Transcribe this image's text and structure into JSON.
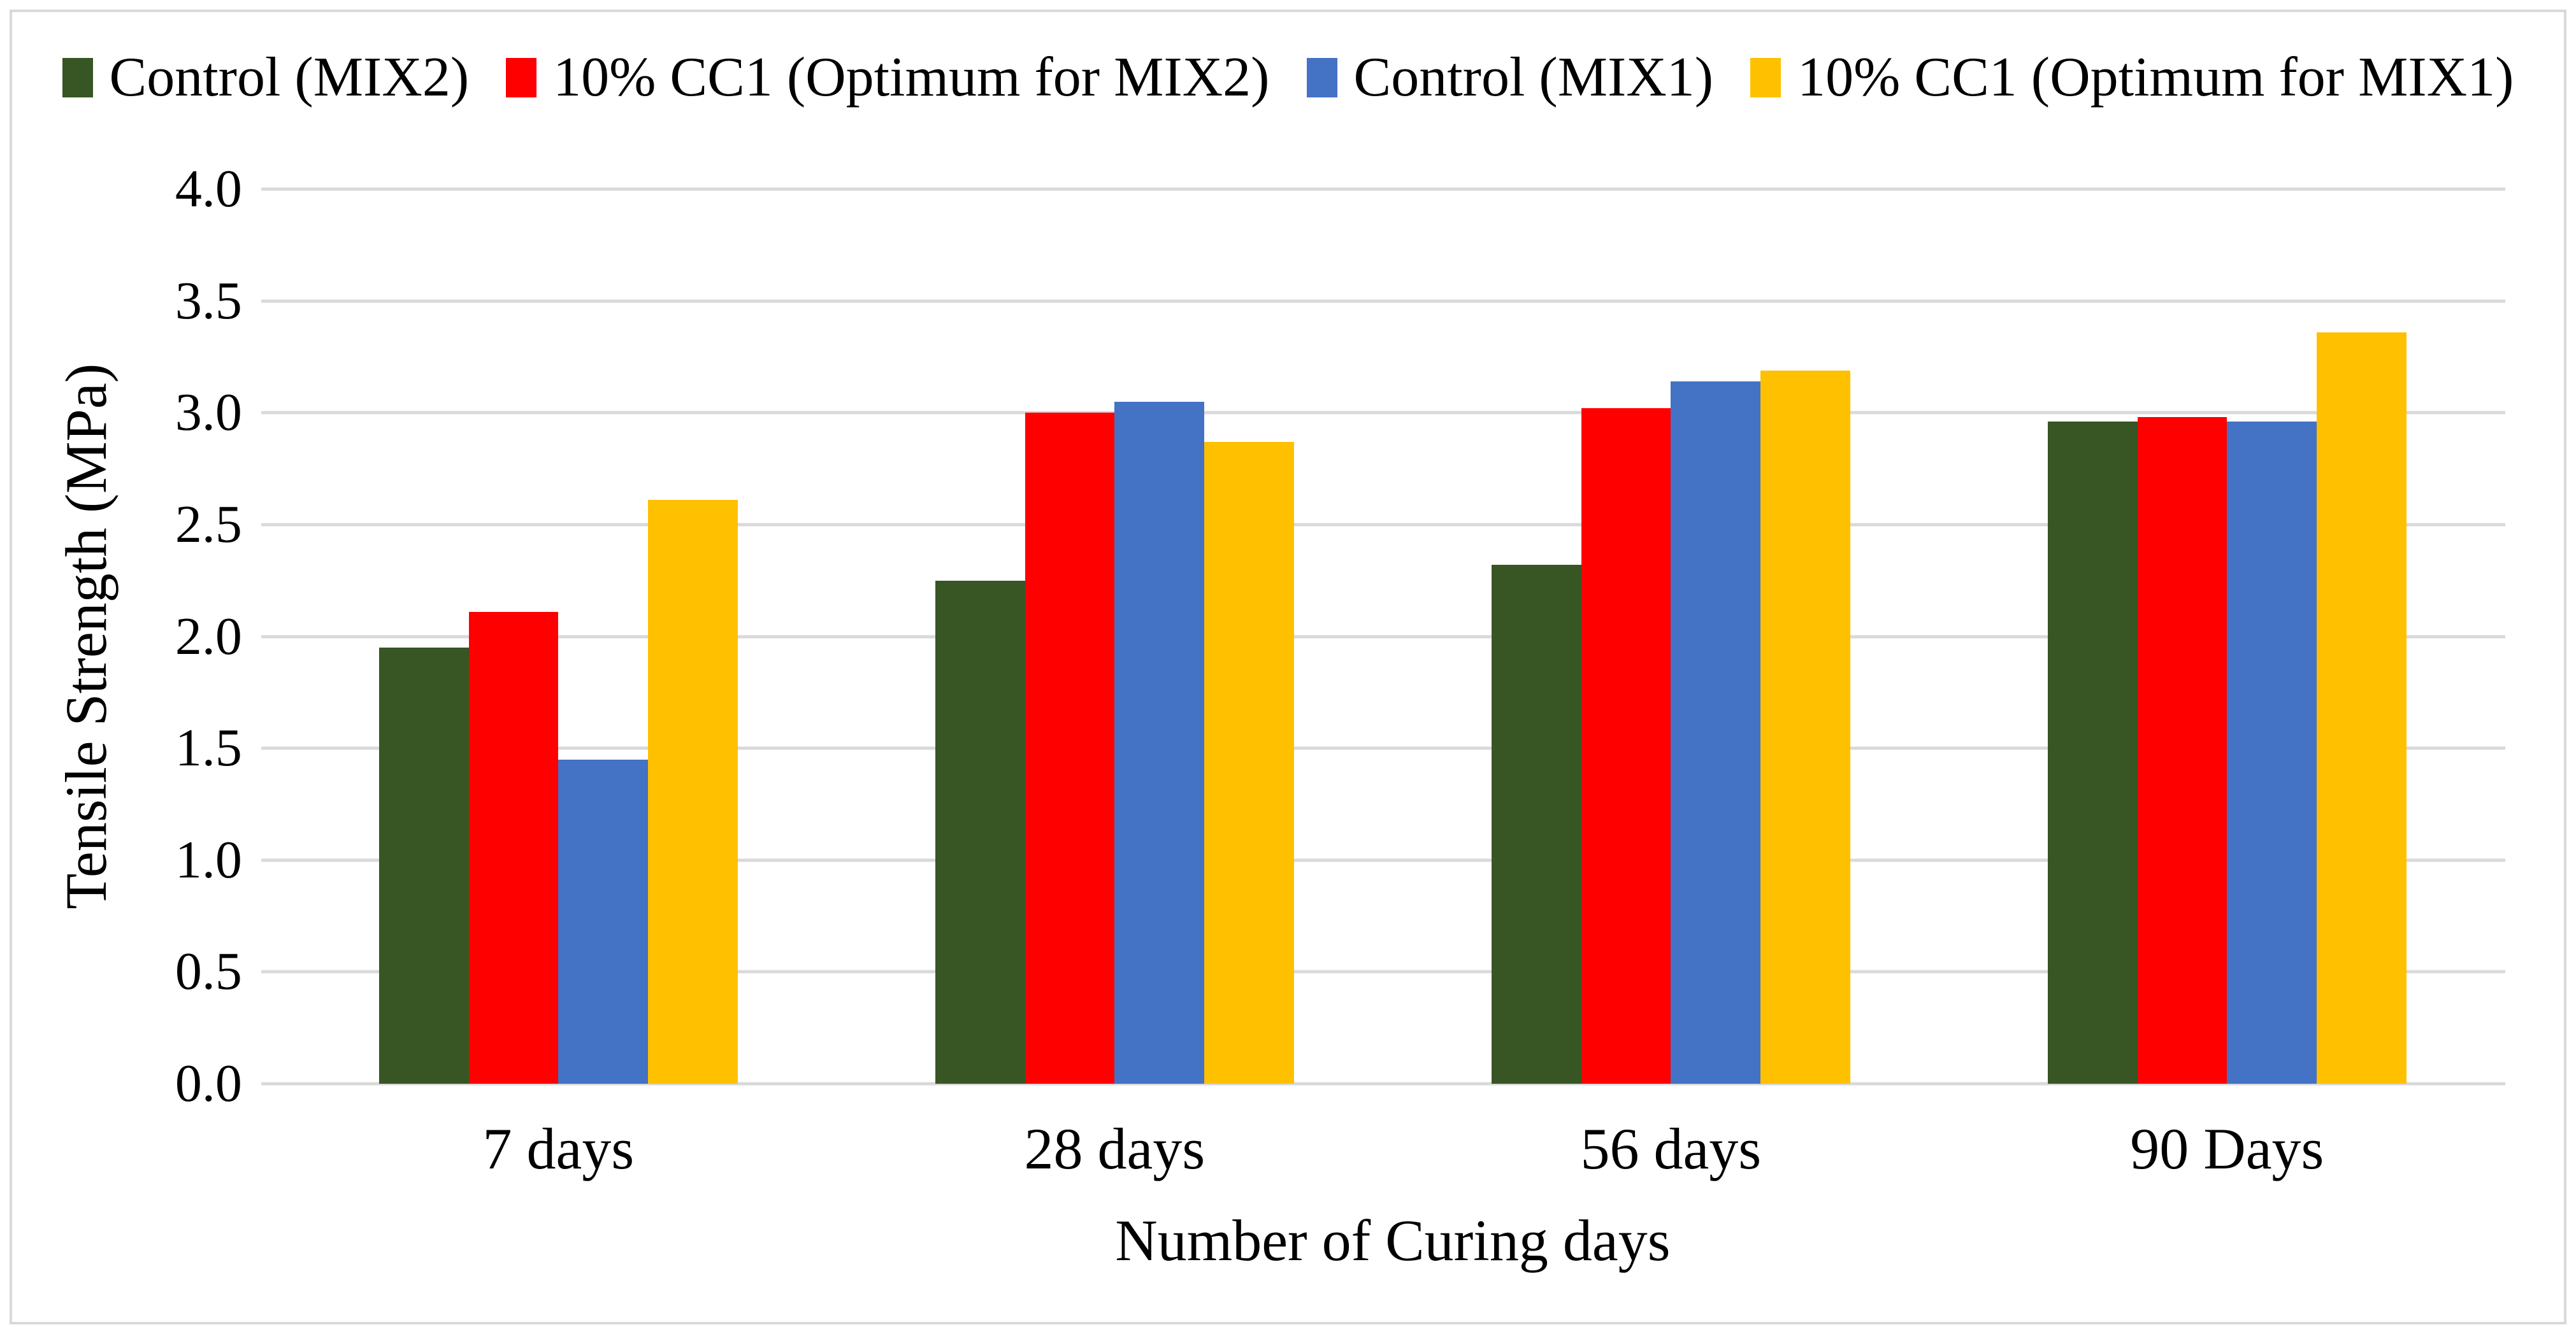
{
  "chart_data": {
    "type": "bar",
    "title": "",
    "categories": [
      "7 days",
      "28 days",
      "56 days",
      "90 Days"
    ],
    "series": [
      {
        "name": "Control (MIX2)",
        "color": "#375623",
        "values": [
          1.95,
          2.25,
          2.32,
          2.96
        ]
      },
      {
        "name": "10% CC1 (Optimum for MIX2)",
        "color": "#FF0000",
        "values": [
          2.11,
          3.0,
          3.02,
          2.98
        ]
      },
      {
        "name": "Control (MIX1)",
        "color": "#4472C4",
        "values": [
          1.45,
          3.05,
          3.14,
          2.96
        ]
      },
      {
        "name": "10% CC1 (Optimum for MIX1)",
        "color": "#FFC000",
        "values": [
          2.61,
          2.87,
          3.19,
          3.36
        ]
      }
    ],
    "xlabel": "Number of Curing days",
    "ylabel": "Tensile Strength (MPa)",
    "ylim": [
      0.0,
      4.0
    ],
    "y_tick_labels": [
      "0.0",
      "0.5",
      "1.0",
      "1.5",
      "2.0",
      "2.5",
      "3.0",
      "3.5",
      "4.0"
    ],
    "grid": true,
    "legend_position": "top",
    "colors": {
      "gridline": "#D9D9D9",
      "frame_border": "#D9D9D9",
      "background": "#FFFFFF",
      "text": "#000000"
    }
  }
}
